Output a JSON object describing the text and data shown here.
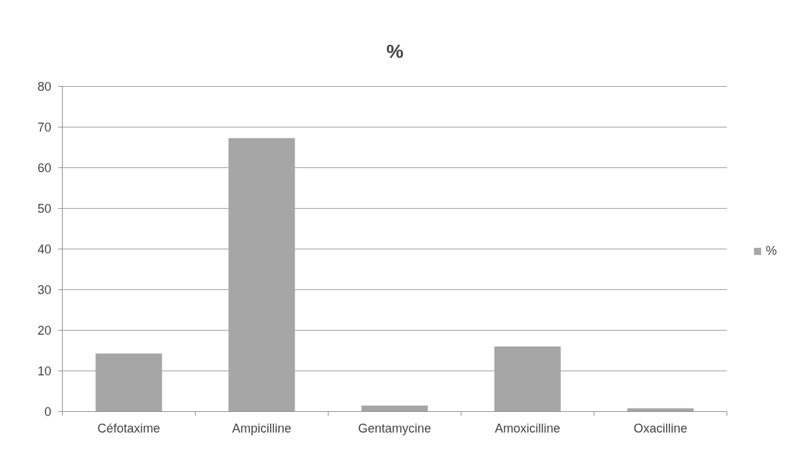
{
  "chart_data": {
    "type": "bar",
    "title": "%",
    "categories": [
      "Céfotaxime",
      "Ampicilline",
      "Gentamycine",
      "Amoxicilline",
      "Oxacilline"
    ],
    "series": [
      {
        "name": "%",
        "color": "#a6a6a6",
        "values": [
          14.3,
          67.3,
          1.5,
          16,
          0.8
        ]
      }
    ],
    "ylim": [
      0,
      80
    ],
    "yticks": [
      0,
      10,
      20,
      30,
      40,
      50,
      60,
      70,
      80
    ],
    "grid": "y",
    "legend": "right"
  }
}
